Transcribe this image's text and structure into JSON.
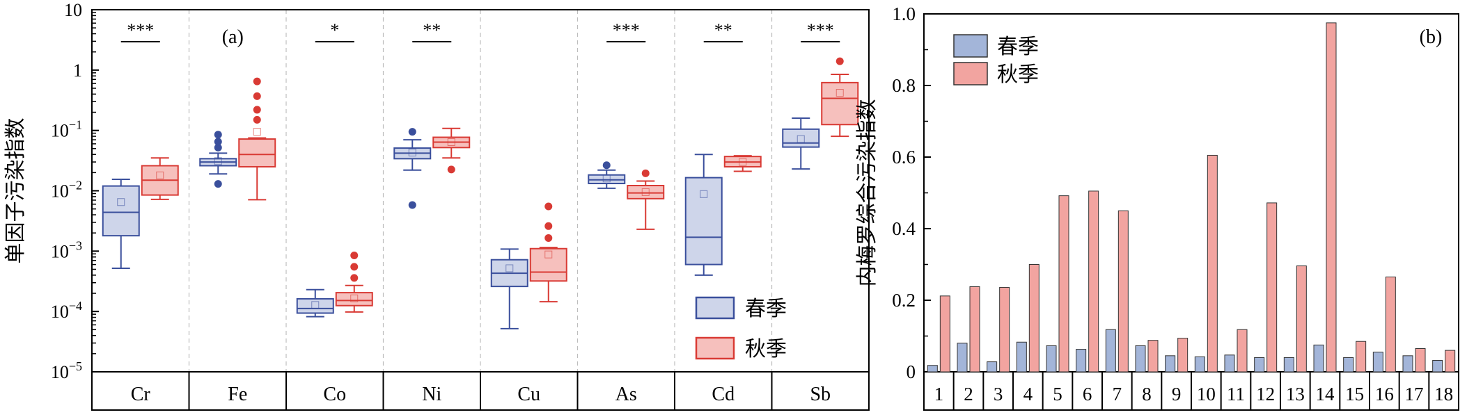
{
  "chart_data": [
    {
      "type": "box",
      "panel_label": "(a)",
      "ylabel": "单因子污染指数",
      "yscale": "log",
      "ylim": [
        1e-05,
        10
      ],
      "ytick_labels": [
        {
          "value": 10,
          "base": "10",
          "exp": ""
        },
        {
          "value": 1,
          "base": "1",
          "exp": ""
        },
        {
          "value": 0.1,
          "base": "10",
          "exp": "−1"
        },
        {
          "value": 0.01,
          "base": "10",
          "exp": "−2"
        },
        {
          "value": 0.001,
          "base": "10",
          "exp": "−3"
        },
        {
          "value": 0.0001,
          "base": "10",
          "exp": "−4"
        },
        {
          "value": 1e-05,
          "base": "10",
          "exp": "−5"
        }
      ],
      "categories": [
        "Cr",
        "Fe",
        "Co",
        "Ni",
        "Cu",
        "As",
        "Cd",
        "Sb"
      ],
      "significance": [
        "***",
        "",
        "*",
        "**",
        "",
        "***",
        "**",
        "***"
      ],
      "legend": {
        "position": "bottom-right",
        "entries": [
          "春季",
          "秋季"
        ]
      },
      "colors": {
        "spring_stroke": "#3a4f9c",
        "spring_fill": "#ced5ea",
        "autumn_stroke": "#d93a34",
        "autumn_fill": "#f6c0bd"
      },
      "series": [
        {
          "name": "春季",
          "boxes": [
            {
              "wlo": 0.00052,
              "q1": 0.0018,
              "med": 0.0044,
              "q3": 0.012,
              "whi": 0.0155,
              "mean": 0.0065,
              "outliers": []
            },
            {
              "wlo": 0.019,
              "q1": 0.026,
              "med": 0.03,
              "q3": 0.034,
              "whi": 0.042,
              "mean": 0.031,
              "outliers": [
                0.013,
                0.052,
                0.065,
                0.085
              ]
            },
            {
              "wlo": 8.2e-05,
              "q1": 9.4e-05,
              "med": 0.000112,
              "q3": 0.000162,
              "whi": 0.00023,
              "mean": 0.000128,
              "outliers": []
            },
            {
              "wlo": 0.022,
              "q1": 0.034,
              "med": 0.042,
              "q3": 0.051,
              "whi": 0.07,
              "mean": 0.043,
              "outliers": [
                0.0058,
                0.095
              ]
            },
            {
              "wlo": 5.2e-05,
              "q1": 0.00026,
              "med": 0.00043,
              "q3": 0.00072,
              "whi": 0.00108,
              "mean": 0.00052,
              "outliers": []
            },
            {
              "wlo": 0.011,
              "q1": 0.0132,
              "med": 0.0152,
              "q3": 0.0183,
              "whi": 0.022,
              "mean": 0.016,
              "outliers": [
                0.0265
              ]
            },
            {
              "wlo": 0.0004,
              "q1": 0.0006,
              "med": 0.0017,
              "q3": 0.0165,
              "whi": 0.04,
              "mean": 0.0088,
              "outliers": []
            },
            {
              "wlo": 0.023,
              "q1": 0.053,
              "med": 0.062,
              "q3": 0.105,
              "whi": 0.16,
              "mean": 0.072,
              "outliers": []
            }
          ]
        },
        {
          "name": "秋季",
          "boxes": [
            {
              "wlo": 0.0072,
              "q1": 0.0085,
              "med": 0.015,
              "q3": 0.026,
              "whi": 0.035,
              "mean": 0.018,
              "outliers": []
            },
            {
              "wlo": 0.0071,
              "q1": 0.025,
              "med": 0.04,
              "q3": 0.072,
              "whi": 0.075,
              "mean": 0.095,
              "outliers": [
                0.15,
                0.22,
                0.37,
                0.65
              ]
            },
            {
              "wlo": 9.8e-05,
              "q1": 0.000125,
              "med": 0.000152,
              "q3": 0.000205,
              "whi": 0.00027,
              "mean": 0.000165,
              "outliers": [
                0.00036,
                0.00055,
                0.00085
              ]
            },
            {
              "wlo": 0.035,
              "q1": 0.052,
              "med": 0.064,
              "q3": 0.077,
              "whi": 0.108,
              "mean": 0.064,
              "outliers": [
                0.0225
              ]
            },
            {
              "wlo": 0.000145,
              "q1": 0.00032,
              "med": 0.00045,
              "q3": 0.0011,
              "whi": 0.00115,
              "mean": 0.00088,
              "outliers": [
                0.00165,
                0.0026,
                0.0055
              ]
            },
            {
              "wlo": 0.0023,
              "q1": 0.0074,
              "med": 0.0092,
              "q3": 0.0122,
              "whi": 0.0145,
              "mean": 0.0095,
              "outliers": [
                0.0195
              ]
            },
            {
              "wlo": 0.021,
              "q1": 0.025,
              "med": 0.03,
              "q3": 0.037,
              "whi": 0.038,
              "mean": 0.03,
              "outliers": []
            },
            {
              "wlo": 0.08,
              "q1": 0.125,
              "med": 0.34,
              "q3": 0.62,
              "whi": 0.85,
              "mean": 0.42,
              "outliers": [
                1.4
              ]
            }
          ]
        }
      ]
    },
    {
      "type": "bar",
      "panel_label": "(b)",
      "ylabel": "内梅罗综合污染指数",
      "ylim": [
        0,
        1.0
      ],
      "ytick_labels": [
        "0",
        "0.2",
        "0.4",
        "0.6",
        "0.8",
        "1.0"
      ],
      "ytick_values": [
        0,
        0.2,
        0.4,
        0.6,
        0.8,
        1.0
      ],
      "categories": [
        "1",
        "2",
        "3",
        "4",
        "5",
        "6",
        "7",
        "8",
        "9",
        "10",
        "11",
        "12",
        "13",
        "14",
        "15",
        "16",
        "17",
        "18"
      ],
      "legend": {
        "position": "top-left",
        "entries": [
          "春季",
          "秋季"
        ]
      },
      "colors": {
        "spring_fill": "#a3b5d9",
        "autumn_fill": "#f2a4a0"
      },
      "series": [
        {
          "name": "春季",
          "values": [
            0.018,
            0.08,
            0.028,
            0.083,
            0.073,
            0.063,
            0.118,
            0.073,
            0.045,
            0.042,
            0.047,
            0.04,
            0.04,
            0.075,
            0.04,
            0.055,
            0.045,
            0.032
          ]
        },
        {
          "name": "秋季",
          "values": [
            0.212,
            0.238,
            0.236,
            0.3,
            0.492,
            0.505,
            0.45,
            0.088,
            0.094,
            0.605,
            0.118,
            0.472,
            0.296,
            0.975,
            0.085,
            0.265,
            0.065,
            0.06
          ]
        }
      ]
    }
  ]
}
